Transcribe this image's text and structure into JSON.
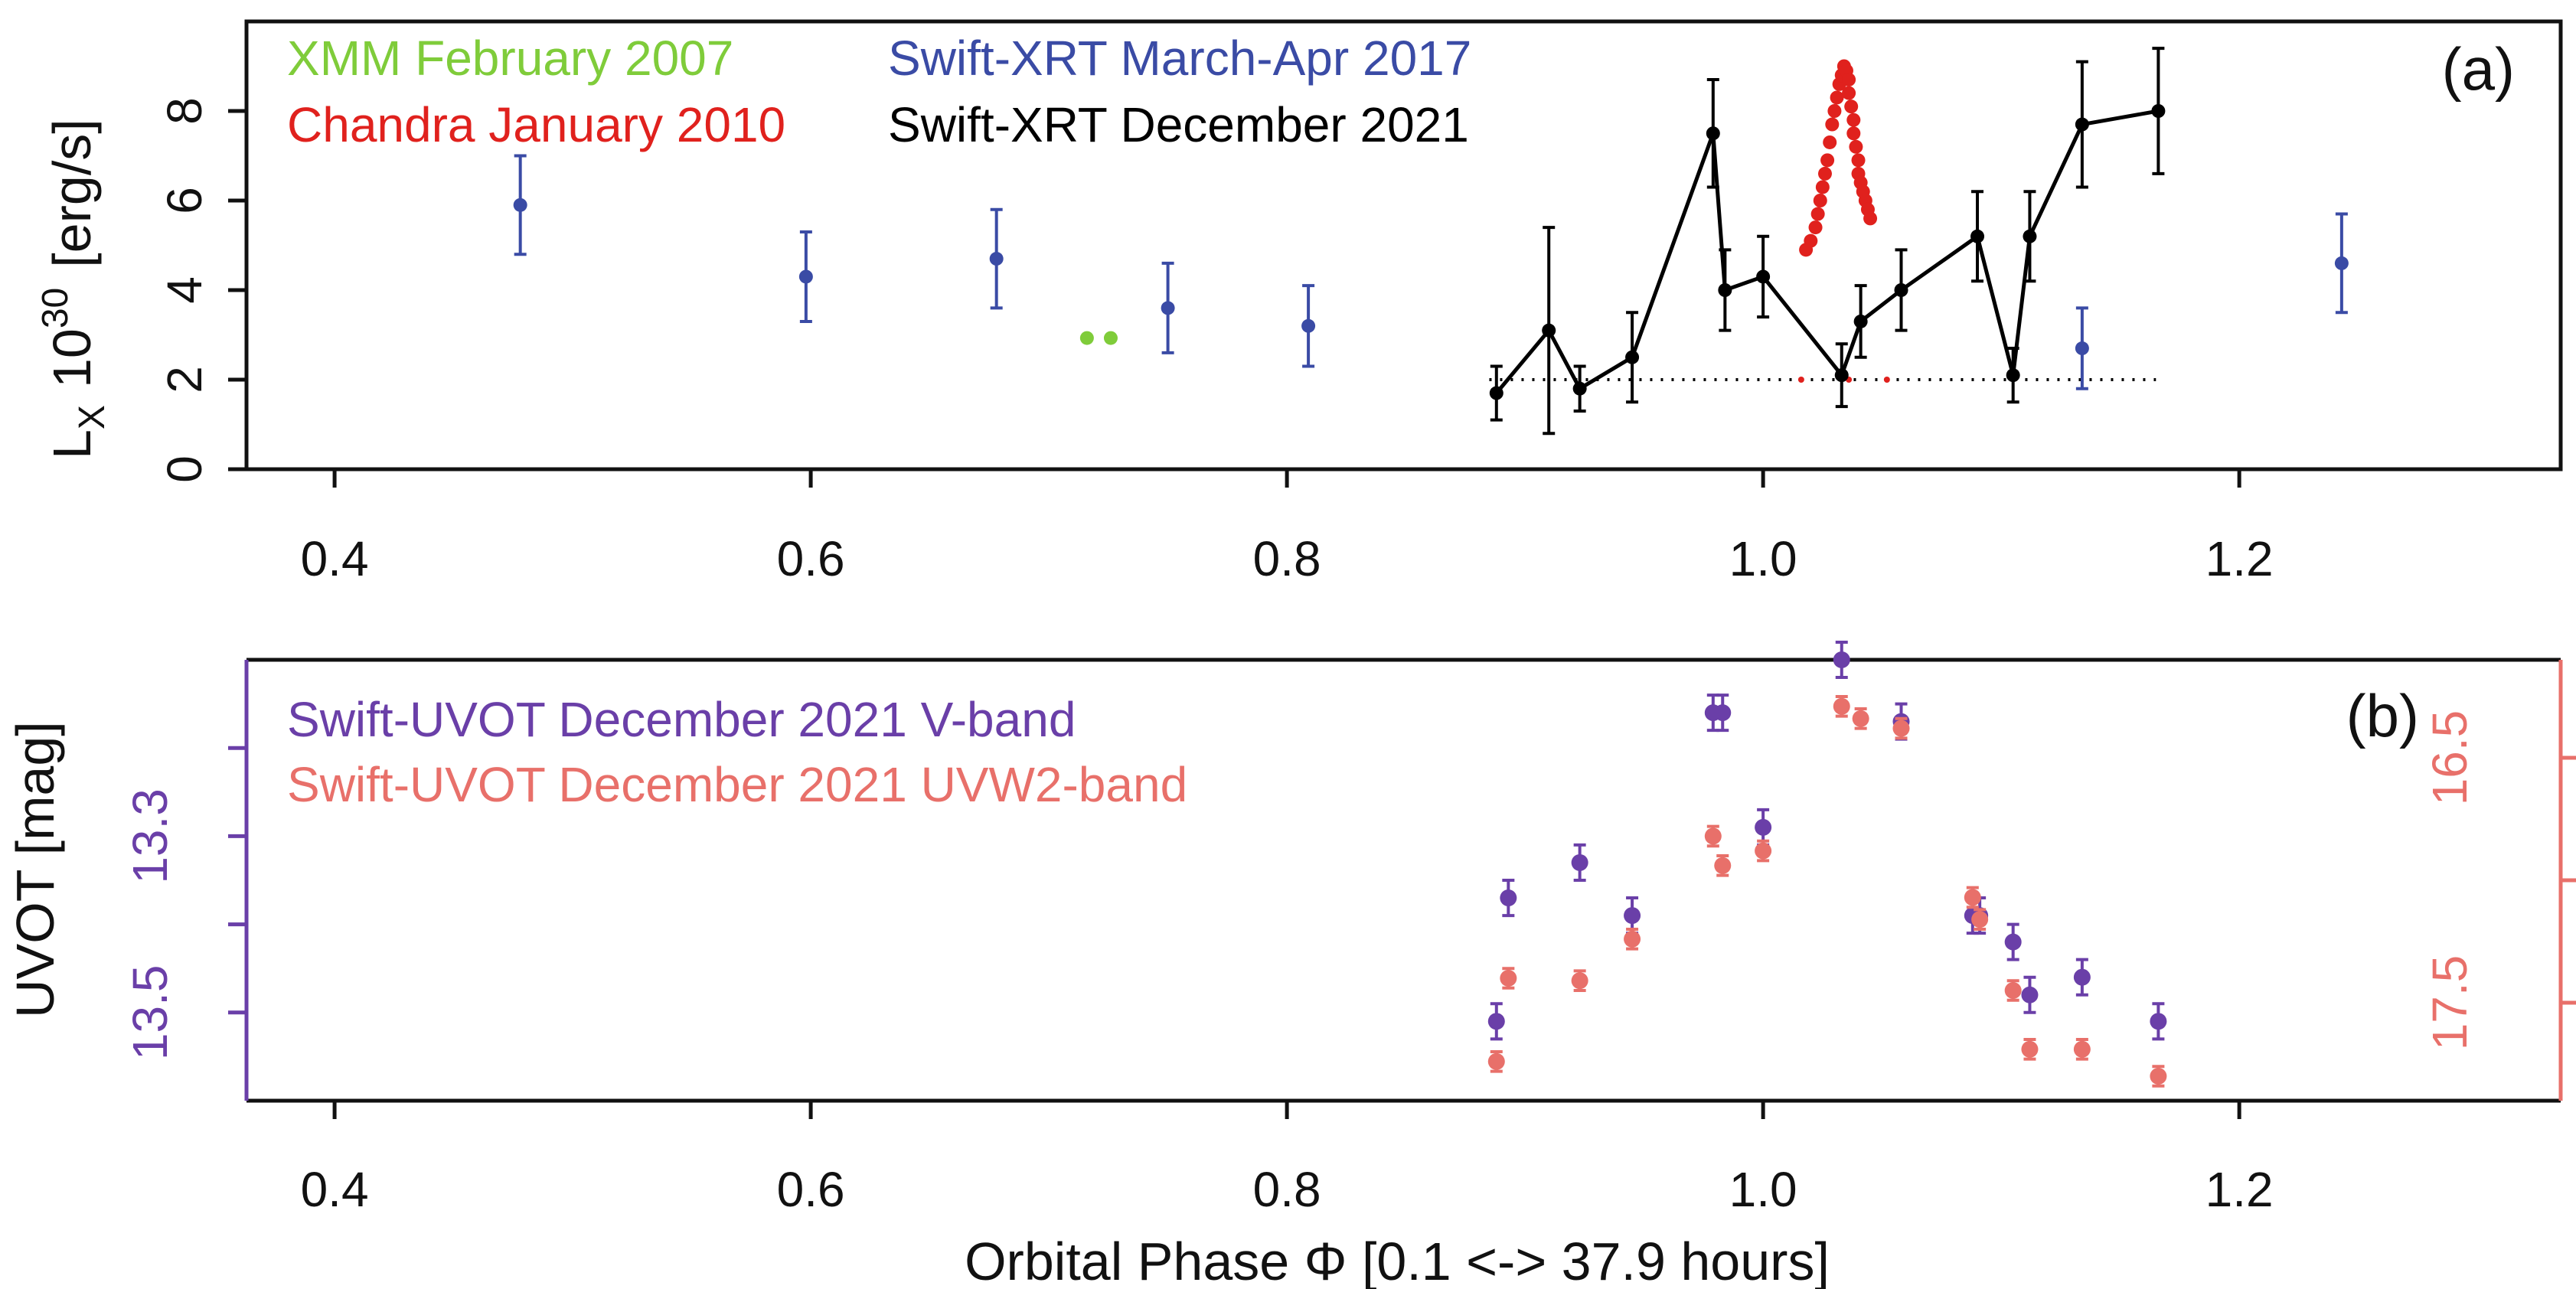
{
  "chart_data": [
    {
      "id": "a",
      "type": "scatter",
      "panel_label": "(a)",
      "ylabel": "L",
      "ylabel_sub": "X",
      "ylabel_rest": "10",
      "ylabel_exp": "30",
      "ylabel_unit": "[erg/s]",
      "xlim": [
        0.363,
        1.335
      ],
      "ylim": [
        0,
        10
      ],
      "x_ticks": [
        "0.4",
        "0.6",
        "0.8",
        "1.0",
        "1.2"
      ],
      "y_ticks": [
        "0",
        "2",
        "4",
        "6",
        "8"
      ],
      "grid": false,
      "legend_placement": "top-left",
      "legend": [
        {
          "label": "XMM February 2007",
          "color": "#7fcc3a"
        },
        {
          "label": "Chandra January 2010",
          "color": "#e0211d"
        },
        {
          "label": "Swift-XRT March-Apr 2017",
          "color": "#3a4ba5"
        },
        {
          "label": "Swift-XRT December 2021",
          "color": "#000000"
        }
      ],
      "reference_line": {
        "y": 2.0,
        "x_range": [
          0.885,
          1.165
        ],
        "style": "dotted",
        "color": "#000000"
      },
      "series": [
        {
          "name": "Swift-XRT March-Apr 2017",
          "color": "#3a4ba5",
          "x": [
            0.478,
            0.598,
            0.678,
            0.75,
            0.809,
            1.134,
            1.243
          ],
          "y": [
            5.9,
            4.3,
            4.7,
            3.6,
            3.2,
            2.7,
            4.6
          ],
          "err": [
            1.1,
            1.0,
            1.1,
            1.0,
            0.9,
            0.9,
            1.1
          ]
        },
        {
          "name": "XMM February 2007",
          "color": "#7fcc3a",
          "x": [
            0.716,
            0.726
          ],
          "y": [
            2.93,
            2.93
          ]
        },
        {
          "name": "Chandra January 2010",
          "color": "#e0211d",
          "x": [
            1.018,
            1.02,
            1.022,
            1.023,
            1.024,
            1.025,
            1.026,
            1.027,
            1.028,
            1.029,
            1.03,
            1.031,
            1.032,
            1.033,
            1.034,
            1.035,
            1.036,
            1.036,
            1.037,
            1.038,
            1.038,
            1.039,
            1.04,
            1.04,
            1.041,
            1.042,
            1.043,
            1.044,
            1.045
          ],
          "y": [
            4.9,
            5.1,
            5.4,
            5.7,
            6.0,
            6.3,
            6.6,
            6.9,
            7.3,
            7.7,
            8.0,
            8.3,
            8.6,
            8.8,
            9.0,
            8.9,
            8.7,
            8.4,
            8.1,
            7.8,
            7.5,
            7.2,
            6.9,
            6.6,
            6.4,
            6.2,
            6.0,
            5.8,
            5.6
          ]
        },
        {
          "name": "Chandra January 2010 (baseline)",
          "color": "#e0211d",
          "x": [
            1.016,
            1.036,
            1.052
          ],
          "y": [
            2.0,
            2.0,
            2.0
          ]
        },
        {
          "name": "Swift-XRT December 2021",
          "color": "#000000",
          "connected": true,
          "x": [
            0.888,
            0.91,
            0.923,
            0.945,
            0.979,
            0.984,
            1.0,
            1.033,
            1.041,
            1.058,
            1.09,
            1.105,
            1.112,
            1.134,
            1.166
          ],
          "y": [
            1.7,
            3.1,
            1.8,
            2.5,
            7.5,
            4.0,
            4.3,
            2.1,
            3.3,
            4.0,
            5.2,
            2.1,
            5.2,
            7.7,
            8.0
          ],
          "err": [
            0.6,
            2.3,
            0.5,
            1.0,
            1.2,
            0.9,
            0.9,
            0.7,
            0.8,
            0.9,
            1.0,
            0.6,
            1.0,
            1.4,
            1.4
          ]
        }
      ]
    },
    {
      "id": "b",
      "type": "scatter",
      "panel_label": "(b)",
      "title": "",
      "xlabel": "Orbital Phase Φ [0.1 <-> 37.9 hours]",
      "ylabel_left": "UVOT [mag]",
      "xlim": [
        0.363,
        1.335
      ],
      "ylim_left": [
        13.6,
        13.1
      ],
      "ylim_right": [
        17.9,
        16.1
      ],
      "x_ticks": [
        "0.4",
        "0.6",
        "0.8",
        "1.0",
        "1.2"
      ],
      "y_ticks_left": [
        {
          "value": 13.3,
          "label": "13.3"
        },
        {
          "value": 13.5,
          "label": "13.5"
        }
      ],
      "y_ticks_left_unlabeled": [
        13.2,
        13.4
      ],
      "y_ticks_right": [
        {
          "value": 16.5,
          "label": "16.5"
        },
        {
          "value": 17.5,
          "label": "17.5"
        }
      ],
      "y_ticks_right_unlabeled": [
        17.0
      ],
      "left_axis_color": "#6a3fa8",
      "right_axis_color": "#e8706a",
      "grid": false,
      "legend_placement": "top-left",
      "legend": [
        {
          "label": "Swift-UVOT December 2021 V-band",
          "color": "#6a3fa8"
        },
        {
          "label": "Swift-UVOT December 2021 UVW2-band",
          "color": "#e8706a"
        }
      ],
      "series": [
        {
          "name": "Swift-UVOT December 2021 V-band",
          "axis": "left",
          "color": "#6a3fa8",
          "x": [
            0.888,
            0.893,
            0.923,
            0.945,
            0.979,
            0.983,
            1.0,
            1.033,
            1.058,
            1.088,
            1.091,
            1.105,
            1.112,
            1.134,
            1.166
          ],
          "y": [
            13.51,
            13.37,
            13.33,
            13.39,
            13.16,
            13.16,
            13.29,
            13.1,
            13.17,
            13.39,
            13.39,
            13.42,
            13.48,
            13.46,
            13.51
          ],
          "err": [
            0.02,
            0.02,
            0.02,
            0.02,
            0.02,
            0.02,
            0.02,
            0.02,
            0.02,
            0.02,
            0.02,
            0.02,
            0.02,
            0.02,
            0.02
          ]
        },
        {
          "name": "Swift-UVOT December 2021 UVW2-band",
          "axis": "right",
          "color": "#e8706a",
          "x": [
            0.888,
            0.893,
            0.923,
            0.945,
            0.979,
            0.983,
            1.0,
            1.033,
            1.041,
            1.058,
            1.088,
            1.091,
            1.105,
            1.112,
            1.134,
            1.166
          ],
          "y": [
            17.74,
            17.4,
            17.41,
            17.24,
            16.82,
            16.94,
            16.88,
            16.29,
            16.34,
            16.38,
            17.07,
            17.16,
            17.45,
            17.69,
            17.69,
            17.8
          ],
          "err": [
            0.04,
            0.04,
            0.04,
            0.04,
            0.04,
            0.04,
            0.04,
            0.04,
            0.04,
            0.04,
            0.04,
            0.04,
            0.04,
            0.04,
            0.04,
            0.04
          ]
        }
      ]
    }
  ]
}
